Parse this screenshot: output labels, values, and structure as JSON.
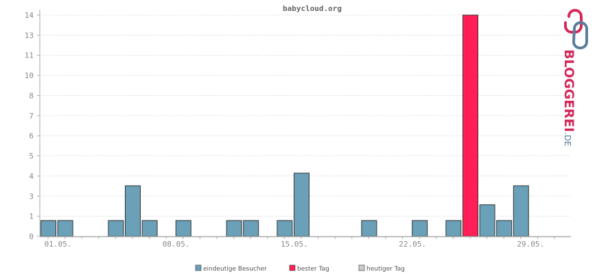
{
  "colors": {
    "visitors": "#6aa0b8",
    "best": "#ff1e55",
    "today": "#cccccc",
    "axis": "#aaaaaa",
    "grid": "#cccccc",
    "logo_red": "#d42a5b",
    "logo_blue": "#5b7d99"
  },
  "logo": {
    "text": "BLOGGEREI",
    "suffix": ".DE"
  },
  "legend": [
    {
      "label": "eindeutige Besucher",
      "color": "#6aa0b8"
    },
    {
      "label": "bester Tag",
      "color": "#ff1e55"
    },
    {
      "label": "heutiger Tag",
      "color": "#cccccc"
    }
  ],
  "chart_data": {
    "type": "bar",
    "title": "babycloud.org",
    "y_ticks": [
      "0",
      "1",
      "3",
      "4",
      "5",
      "6",
      "7",
      "8",
      "10",
      "11",
      "13",
      "14"
    ],
    "ylim": [
      0,
      14
    ],
    "x_labels": [
      "01.05.",
      "08.05.",
      "15.05.",
      "22.05.",
      "29.05."
    ],
    "x_label_days": [
      1,
      8,
      15,
      22,
      29
    ],
    "days": [
      1,
      2,
      3,
      4,
      5,
      6,
      7,
      8,
      9,
      10,
      11,
      12,
      13,
      14,
      15,
      16,
      17,
      18,
      19,
      20,
      21,
      22,
      23,
      24,
      25,
      26,
      27,
      28,
      29,
      30,
      31
    ],
    "values": [
      1,
      1,
      0,
      0,
      1,
      3.2,
      1,
      0,
      1,
      0,
      0,
      1,
      1,
      0,
      1,
      4,
      0,
      0,
      0,
      1,
      0,
      0,
      1,
      0,
      1,
      14,
      2,
      1,
      3.2,
      0,
      0
    ],
    "best_day": 26,
    "series": [
      {
        "name": "eindeutige Besucher"
      },
      {
        "name": "bester Tag"
      },
      {
        "name": "heutiger Tag"
      }
    ]
  }
}
